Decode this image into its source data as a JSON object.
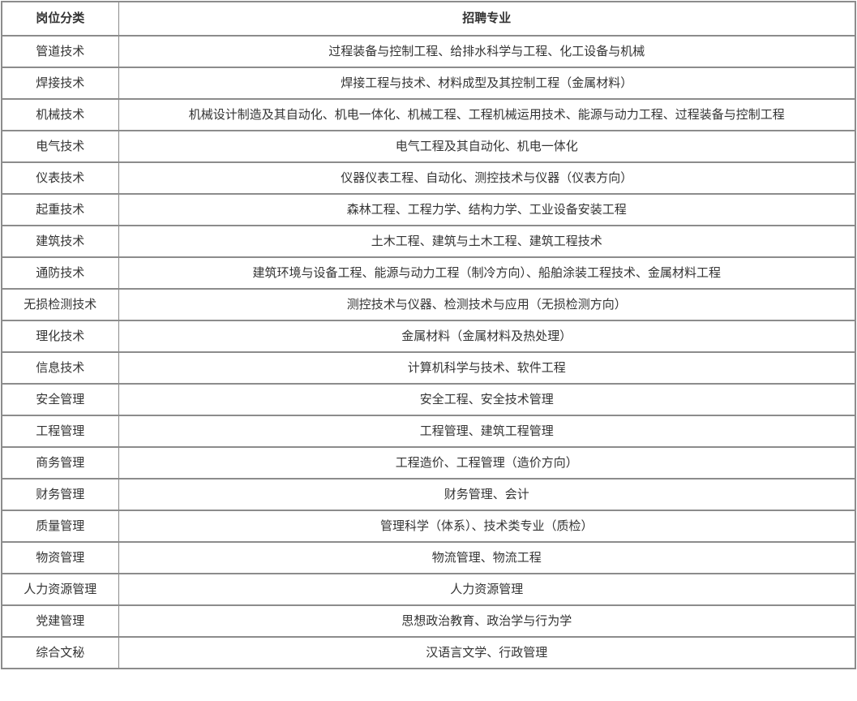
{
  "table": {
    "name": "recruitment-majors-table",
    "headers": {
      "category": "岗位分类",
      "majors": "招聘专业"
    },
    "rows": [
      {
        "category": "管道技术",
        "majors": "过程装备与控制工程、给排水科学与工程、化工设备与机械"
      },
      {
        "category": "焊接技术",
        "majors": "焊接工程与技术、材料成型及其控制工程（金属材料）"
      },
      {
        "category": "机械技术",
        "majors": "机械设计制造及其自动化、机电一体化、机械工程、工程机械运用技术、能源与动力工程、过程装备与控制工程"
      },
      {
        "category": "电气技术",
        "majors": "电气工程及其自动化、机电一体化"
      },
      {
        "category": "仪表技术",
        "majors": "仪器仪表工程、自动化、测控技术与仪器（仪表方向）"
      },
      {
        "category": "起重技术",
        "majors": "森林工程、工程力学、结构力学、工业设备安装工程"
      },
      {
        "category": "建筑技术",
        "majors": "土木工程、建筑与土木工程、建筑工程技术"
      },
      {
        "category": "通防技术",
        "majors": "建筑环境与设备工程、能源与动力工程（制冷方向）、船舶涂装工程技术、金属材料工程"
      },
      {
        "category": "无损检测技术",
        "majors": "测控技术与仪器、检测技术与应用（无损检测方向）"
      },
      {
        "category": "理化技术",
        "majors": "金属材料（金属材料及热处理）"
      },
      {
        "category": "信息技术",
        "majors": "计算机科学与技术、软件工程"
      },
      {
        "category": "安全管理",
        "majors": "安全工程、安全技术管理"
      },
      {
        "category": "工程管理",
        "majors": "工程管理、建筑工程管理"
      },
      {
        "category": "商务管理",
        "majors": "工程造价、工程管理（造价方向）"
      },
      {
        "category": "财务管理",
        "majors": "财务管理、会计"
      },
      {
        "category": "质量管理",
        "majors": "管理科学（体系）、技术类专业（质检）"
      },
      {
        "category": "物资管理",
        "majors": "物流管理、物流工程"
      },
      {
        "category": "人力资源管理",
        "majors": "人力资源管理"
      },
      {
        "category": "党建管理",
        "majors": "思想政治教育、政治学与行为学"
      },
      {
        "category": "综合文秘",
        "majors": "汉语言文学、行政管理"
      }
    ],
    "colors": {
      "border": "#8c8c8c",
      "text": "#333333",
      "background": "#ffffff"
    }
  }
}
